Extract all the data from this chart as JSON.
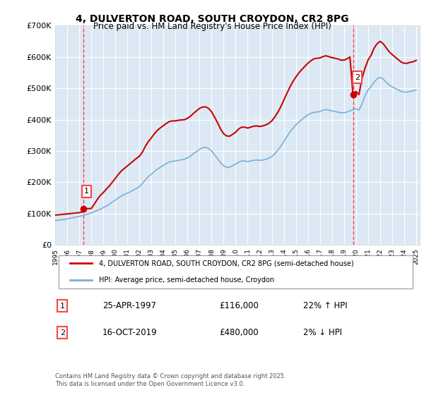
{
  "title_line1": "4, DULVERTON ROAD, SOUTH CROYDON, CR2 8PG",
  "title_line2": "Price paid vs. HM Land Registry's House Price Index (HPI)",
  "ylabel": "",
  "background_color": "#dce9f5",
  "plot_bg_color": "#dce9f5",
  "grid_color": "#ffffff",
  "line1_color": "#cc0000",
  "line2_color": "#7bafd4",
  "marker_color": "#cc0000",
  "dashed_line_color": "#ff4444",
  "ylim": [
    0,
    700000
  ],
  "yticks": [
    0,
    100000,
    200000,
    300000,
    400000,
    500000,
    600000,
    700000
  ],
  "ytick_labels": [
    "£0",
    "£100K",
    "£200K",
    "£300K",
    "£400K",
    "£500K",
    "£600K",
    "£700K"
  ],
  "sale1_year": 1997.32,
  "sale1_price": 116000,
  "sale2_year": 2019.8,
  "sale2_price": 480000,
  "legend1": "4, DULVERTON ROAD, SOUTH CROYDON, CR2 8PG (semi-detached house)",
  "legend2": "HPI: Average price, semi-detached house, Croydon",
  "annotation1_date": "25-APR-1997",
  "annotation1_price": "£116,000",
  "annotation1_hpi": "22% ↑ HPI",
  "annotation2_date": "16-OCT-2019",
  "annotation2_price": "£480,000",
  "annotation2_hpi": "2% ↓ HPI",
  "footnote": "Contains HM Land Registry data © Crown copyright and database right 2025.\nThis data is licensed under the Open Government Licence v3.0.",
  "hpi_years": [
    1995.0,
    1995.25,
    1995.5,
    1995.75,
    1996.0,
    1996.25,
    1996.5,
    1996.75,
    1997.0,
    1997.25,
    1997.5,
    1997.75,
    1998.0,
    1998.25,
    1998.5,
    1998.75,
    1999.0,
    1999.25,
    1999.5,
    1999.75,
    2000.0,
    2000.25,
    2000.5,
    2000.75,
    2001.0,
    2001.25,
    2001.5,
    2001.75,
    2002.0,
    2002.25,
    2002.5,
    2002.75,
    2003.0,
    2003.25,
    2003.5,
    2003.75,
    2004.0,
    2004.25,
    2004.5,
    2004.75,
    2005.0,
    2005.25,
    2005.5,
    2005.75,
    2006.0,
    2006.25,
    2006.5,
    2006.75,
    2007.0,
    2007.25,
    2007.5,
    2007.75,
    2008.0,
    2008.25,
    2008.5,
    2008.75,
    2009.0,
    2009.25,
    2009.5,
    2009.75,
    2010.0,
    2010.25,
    2010.5,
    2010.75,
    2011.0,
    2011.25,
    2011.5,
    2011.75,
    2012.0,
    2012.25,
    2012.5,
    2012.75,
    2013.0,
    2013.25,
    2013.5,
    2013.75,
    2014.0,
    2014.25,
    2014.5,
    2014.75,
    2015.0,
    2015.25,
    2015.5,
    2015.75,
    2016.0,
    2016.25,
    2016.5,
    2016.75,
    2017.0,
    2017.25,
    2017.5,
    2017.75,
    2018.0,
    2018.25,
    2018.5,
    2018.75,
    2019.0,
    2019.25,
    2019.5,
    2019.75,
    2020.0,
    2020.25,
    2020.5,
    2020.75,
    2021.0,
    2021.25,
    2021.5,
    2021.75,
    2022.0,
    2022.25,
    2022.5,
    2022.75,
    2023.0,
    2023.25,
    2023.5,
    2023.75,
    2024.0,
    2024.25,
    2024.5,
    2024.75,
    2025.0
  ],
  "hpi_values": [
    78000,
    79000,
    80000,
    81000,
    83000,
    85000,
    87000,
    89000,
    91000,
    93000,
    96000,
    99000,
    102000,
    106000,
    110000,
    114000,
    119000,
    124000,
    130000,
    137000,
    143000,
    150000,
    156000,
    161000,
    165000,
    170000,
    175000,
    180000,
    186000,
    196000,
    208000,
    218000,
    226000,
    234000,
    242000,
    248000,
    254000,
    260000,
    265000,
    267000,
    268000,
    270000,
    272000,
    274000,
    278000,
    284000,
    292000,
    298000,
    305000,
    310000,
    312000,
    308000,
    300000,
    288000,
    275000,
    262000,
    253000,
    248000,
    248000,
    253000,
    258000,
    264000,
    268000,
    268000,
    266000,
    268000,
    270000,
    271000,
    270000,
    271000,
    273000,
    277000,
    282000,
    291000,
    302000,
    315000,
    330000,
    345000,
    360000,
    372000,
    383000,
    392000,
    400000,
    408000,
    415000,
    420000,
    423000,
    424000,
    426000,
    430000,
    432000,
    430000,
    428000,
    426000,
    424000,
    422000,
    422000,
    424000,
    428000,
    432000,
    435000,
    430000,
    450000,
    475000,
    495000,
    505000,
    520000,
    530000,
    535000,
    530000,
    520000,
    510000,
    505000,
    500000,
    495000,
    490000,
    488000,
    488000,
    490000,
    492000,
    495000
  ],
  "house_years": [
    1995.0,
    1995.25,
    1995.5,
    1995.75,
    1996.0,
    1996.25,
    1996.5,
    1996.75,
    1997.0,
    1997.25,
    1997.5,
    1997.75,
    1998.0,
    1998.25,
    1998.5,
    1998.75,
    1999.0,
    1999.25,
    1999.5,
    1999.75,
    2000.0,
    2000.25,
    2000.5,
    2000.75,
    2001.0,
    2001.25,
    2001.5,
    2001.75,
    2002.0,
    2002.25,
    2002.5,
    2002.75,
    2003.0,
    2003.25,
    2003.5,
    2003.75,
    2004.0,
    2004.25,
    2004.5,
    2004.75,
    2005.0,
    2005.25,
    2005.5,
    2005.75,
    2006.0,
    2006.25,
    2006.5,
    2006.75,
    2007.0,
    2007.25,
    2007.5,
    2007.75,
    2008.0,
    2008.25,
    2008.5,
    2008.75,
    2009.0,
    2009.25,
    2009.5,
    2009.75,
    2010.0,
    2010.25,
    2010.5,
    2010.75,
    2011.0,
    2011.25,
    2011.5,
    2011.75,
    2012.0,
    2012.25,
    2012.5,
    2012.75,
    2013.0,
    2013.25,
    2013.5,
    2013.75,
    2014.0,
    2014.25,
    2014.5,
    2014.75,
    2015.0,
    2015.25,
    2015.5,
    2015.75,
    2016.0,
    2016.25,
    2016.5,
    2016.75,
    2017.0,
    2017.25,
    2017.5,
    2017.75,
    2018.0,
    2018.25,
    2018.5,
    2018.75,
    2019.0,
    2019.25,
    2019.5,
    2019.75,
    2020.0,
    2020.25,
    2020.5,
    2020.75,
    2021.0,
    2021.25,
    2021.5,
    2021.75,
    2022.0,
    2022.25,
    2022.5,
    2022.75,
    2023.0,
    2023.25,
    2023.5,
    2023.75,
    2024.0,
    2024.25,
    2024.5,
    2024.75,
    2025.0
  ],
  "house_values": [
    95000,
    96000,
    97000,
    98000,
    99000,
    100000,
    101000,
    102000,
    103000,
    105000,
    116000,
    116000,
    116000,
    130000,
    145000,
    158000,
    167000,
    178000,
    188000,
    200000,
    212000,
    225000,
    236000,
    244000,
    252000,
    260000,
    268000,
    276000,
    283000,
    296000,
    315000,
    330000,
    342000,
    355000,
    366000,
    374000,
    381000,
    388000,
    394000,
    396000,
    396000,
    398000,
    399000,
    400000,
    404000,
    411000,
    420000,
    428000,
    436000,
    440000,
    441000,
    436000,
    425000,
    408000,
    390000,
    370000,
    355000,
    348000,
    347000,
    353000,
    360000,
    370000,
    376000,
    376000,
    373000,
    376000,
    379000,
    380000,
    378000,
    380000,
    383000,
    388000,
    396000,
    408000,
    423000,
    441000,
    462000,
    483000,
    503000,
    521000,
    536000,
    549000,
    560000,
    570000,
    580000,
    588000,
    594000,
    596000,
    597000,
    601000,
    604000,
    601000,
    598000,
    596000,
    594000,
    590000,
    590000,
    594000,
    600000,
    480000,
    490000,
    480000,
    532000,
    564000,
    590000,
    605000,
    628000,
    642000,
    650000,
    643000,
    630000,
    617000,
    608000,
    600000,
    592000,
    584000,
    580000,
    580000,
    583000,
    585000,
    589000
  ]
}
